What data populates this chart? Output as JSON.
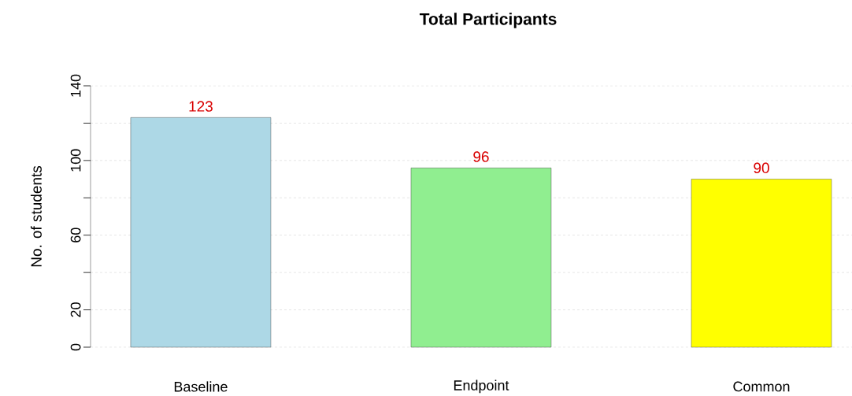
{
  "chart_data": {
    "type": "bar",
    "title": "Total Participants",
    "ylabel": "No. of students",
    "categories": [
      "Baseline",
      "Endpoint",
      "Common"
    ],
    "values": [
      123,
      96,
      90
    ],
    "colors": [
      "#add8e6",
      "#90ee90",
      "#ffff00"
    ],
    "ylim": [
      0,
      140
    ],
    "yticks": [
      0,
      20,
      {
        "value": 40,
        "label": null
      },
      60,
      {
        "value": 80,
        "label": null
      },
      100,
      {
        "value": 120,
        "label": null
      },
      140
    ],
    "grid": "y",
    "data_labels": true
  }
}
